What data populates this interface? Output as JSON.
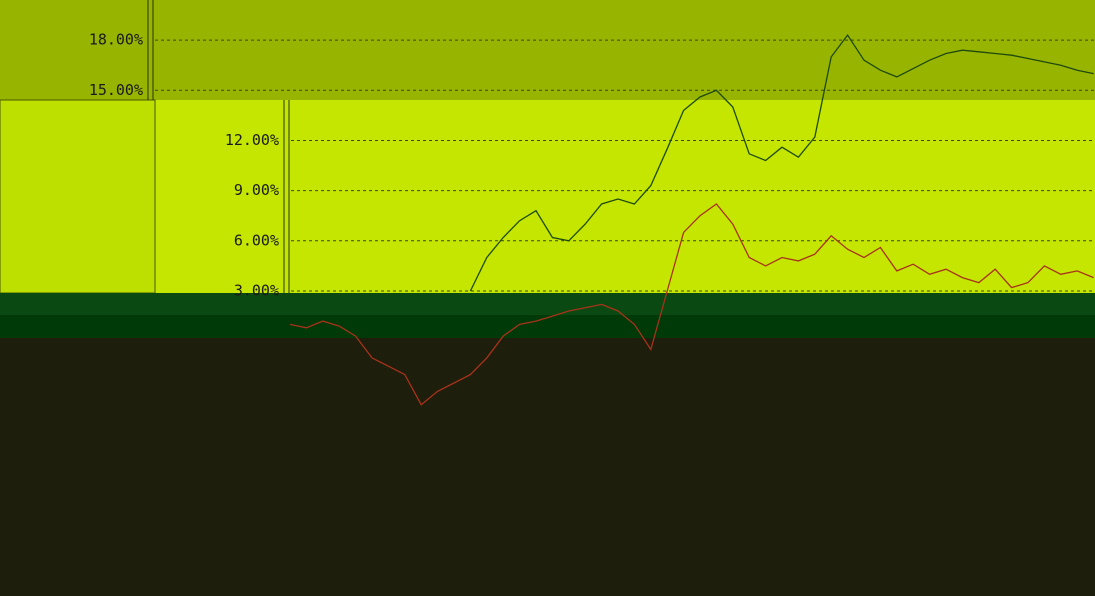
{
  "chart_data": {
    "type": "line",
    "ylim": [
      -15.24,
      20.4
    ],
    "yticks": [
      {
        "value": 18,
        "label": "18.00%"
      },
      {
        "value": 15,
        "label": "15.00%"
      },
      {
        "value": 12,
        "label": "12.00%"
      },
      {
        "value": 9,
        "label": "9.00%"
      },
      {
        "value": 6,
        "label": "6.00%"
      },
      {
        "value": 3,
        "label": "3.00%"
      }
    ],
    "grid": true,
    "series": [
      {
        "color": "#1f4a0c",
        "values": [
          null,
          null,
          null,
          null,
          null,
          null,
          null,
          null,
          null,
          null,
          null,
          3.0,
          5.0,
          6.2,
          7.2,
          7.8,
          6.2,
          6.0,
          7.0,
          8.2,
          8.5,
          8.2,
          9.3,
          11.5,
          13.8,
          14.6,
          15.0,
          14.0,
          11.2,
          10.8,
          11.6,
          11.0,
          12.2,
          17.0,
          18.3,
          16.8,
          16.2,
          15.8,
          16.3,
          16.8,
          17.2,
          17.4,
          17.3,
          17.2,
          17.1,
          16.9,
          16.7,
          16.5,
          16.2,
          16.0
        ]
      },
      {
        "color": "#a8321a",
        "values": [
          1.0,
          0.8,
          1.2,
          0.9,
          0.3,
          -1.0,
          -1.5,
          -2.0,
          -3.8,
          -3.0,
          -2.5,
          -2.0,
          -1.0,
          0.3,
          1.0,
          1.2,
          1.5,
          1.8,
          2.0,
          2.2,
          1.8,
          1.0,
          -0.5,
          3.0,
          6.5,
          7.5,
          8.2,
          7.0,
          5.0,
          4.5,
          5.0,
          4.8,
          5.2,
          6.3,
          5.5,
          5.0,
          5.6,
          4.2,
          4.6,
          4.0,
          4.3,
          3.8,
          3.5,
          4.3,
          3.2,
          3.5,
          4.5,
          4.0,
          4.2,
          3.8
        ]
      }
    ]
  }
}
